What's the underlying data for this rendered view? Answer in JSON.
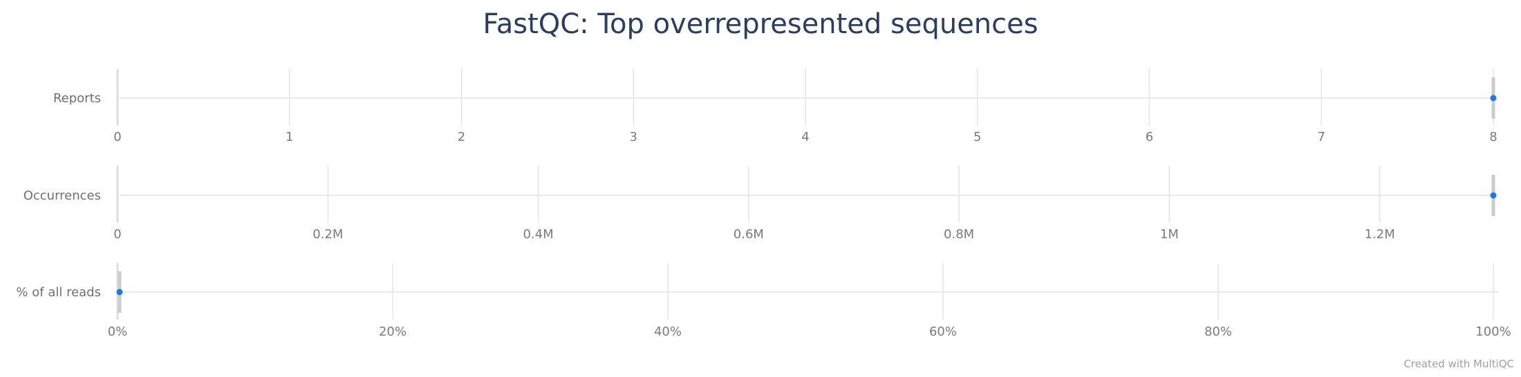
{
  "chart_data": {
    "type": "scatter",
    "title": "FastQC: Top overrepresented sequences",
    "credit": "Created with MultiQC",
    "colors": {
      "point": "#1f77e4",
      "title": "#2a3f5f",
      "grid": "#e2e2e2",
      "range_bar": "#cccccc"
    },
    "rows": [
      {
        "label": "Reports",
        "xlim": [
          0,
          8
        ],
        "ticks": [
          0,
          1,
          2,
          3,
          4,
          5,
          6,
          7,
          8
        ],
        "tick_labels": [
          "0",
          "1",
          "2",
          "3",
          "4",
          "5",
          "6",
          "7",
          "8"
        ],
        "values": [
          8
        ],
        "range": [
          8,
          8
        ]
      },
      {
        "label": "Occurrences",
        "xlim": [
          0,
          1308000
        ],
        "ticks": [
          0,
          200000,
          400000,
          600000,
          800000,
          1000000,
          1200000
        ],
        "tick_labels": [
          "0",
          "0.2M",
          "0.4M",
          "0.6M",
          "0.8M",
          "1M",
          "1.2M"
        ],
        "values": [
          1308000
        ],
        "range": [
          1308000,
          1308000
        ]
      },
      {
        "label": "% of all reads",
        "xlim": [
          0,
          100
        ],
        "ticks": [
          0,
          20,
          40,
          60,
          80,
          100
        ],
        "tick_labels": [
          "0%",
          "20%",
          "40%",
          "60%",
          "80%",
          "100%"
        ],
        "values": [
          0.15
        ],
        "range": [
          0.15,
          0.15
        ]
      }
    ]
  }
}
